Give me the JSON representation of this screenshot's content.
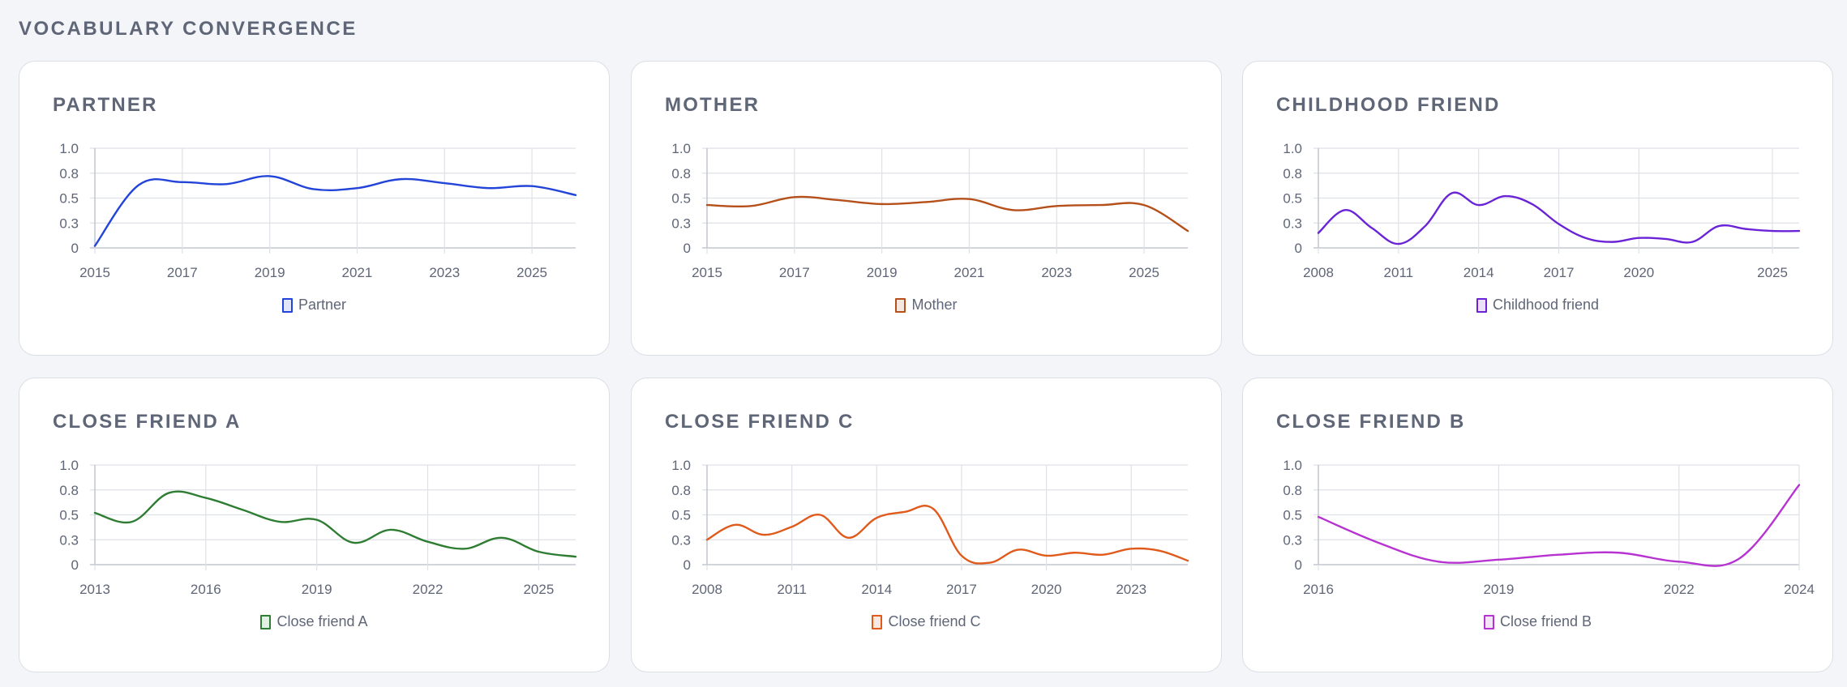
{
  "page": {
    "title": "VOCABULARY CONVERGENCE"
  },
  "chart_data": [
    {
      "type": "line",
      "title": "PARTNER",
      "series": [
        {
          "name": "Partner",
          "color": "#2244d8",
          "x": [
            2015,
            2016,
            2017,
            2018,
            2019,
            2020,
            2021,
            2022,
            2023,
            2024,
            2025,
            2026
          ],
          "values": [
            0.02,
            0.63,
            0.66,
            0.64,
            0.72,
            0.59,
            0.6,
            0.69,
            0.65,
            0.6,
            0.62,
            0.53
          ]
        }
      ],
      "xticks": [
        2015,
        2017,
        2019,
        2021,
        2023,
        2025
      ],
      "xlim": [
        2015,
        2026
      ],
      "yticks": [
        "0",
        "0.3",
        "0.5",
        "0.8",
        "1.0"
      ],
      "ytick_values": [
        0,
        0.25,
        0.5,
        0.75,
        1.0
      ],
      "ylim": [
        0,
        1
      ],
      "grid": true,
      "legend": "bottom"
    },
    {
      "type": "line",
      "title": "MOTHER",
      "series": [
        {
          "name": "Mother",
          "color": "#b5501b",
          "x": [
            2015,
            2016,
            2017,
            2018,
            2019,
            2020,
            2021,
            2022,
            2023,
            2024,
            2025,
            2026
          ],
          "values": [
            0.43,
            0.42,
            0.51,
            0.48,
            0.44,
            0.46,
            0.49,
            0.38,
            0.42,
            0.43,
            0.43,
            0.17
          ]
        }
      ],
      "xticks": [
        2015,
        2017,
        2019,
        2021,
        2023,
        2025
      ],
      "xlim": [
        2015,
        2026
      ],
      "yticks": [
        "0",
        "0.3",
        "0.5",
        "0.8",
        "1.0"
      ],
      "ytick_values": [
        0,
        0.25,
        0.5,
        0.75,
        1.0
      ],
      "ylim": [
        0,
        1
      ],
      "grid": true,
      "legend": "bottom"
    },
    {
      "type": "line",
      "title": "CHILDHOOD FRIEND",
      "series": [
        {
          "name": "Childhood friend",
          "color": "#6a23d6",
          "x": [
            2008,
            2009,
            2010,
            2011,
            2012,
            2013,
            2014,
            2015,
            2016,
            2017,
            2018,
            2019,
            2020,
            2021,
            2022,
            2023,
            2024,
            2025,
            2026
          ],
          "values": [
            0.15,
            0.38,
            0.2,
            0.04,
            0.22,
            0.55,
            0.43,
            0.52,
            0.44,
            0.24,
            0.1,
            0.06,
            0.1,
            0.09,
            0.06,
            0.22,
            0.19,
            0.17,
            0.17
          ]
        }
      ],
      "xticks": [
        2008,
        2011,
        2014,
        2017,
        2020,
        2025
      ],
      "xlim": [
        2008,
        2026
      ],
      "yticks": [
        "0",
        "0.3",
        "0.5",
        "0.8",
        "1.0"
      ],
      "ytick_values": [
        0,
        0.25,
        0.5,
        0.75,
        1.0
      ],
      "ylim": [
        0,
        1
      ],
      "grid": true,
      "legend": "bottom"
    },
    {
      "type": "line",
      "title": "CLOSE FRIEND A",
      "series": [
        {
          "name": "Close friend A",
          "color": "#2e7d32",
          "x": [
            2013,
            2014,
            2015,
            2016,
            2017,
            2018,
            2019,
            2020,
            2021,
            2022,
            2023,
            2024,
            2025,
            2026
          ],
          "values": [
            0.52,
            0.43,
            0.72,
            0.67,
            0.55,
            0.43,
            0.45,
            0.22,
            0.35,
            0.23,
            0.16,
            0.27,
            0.13,
            0.08
          ]
        }
      ],
      "xticks": [
        2013,
        2016,
        2019,
        2022,
        2025
      ],
      "xlim": [
        2013,
        2026
      ],
      "yticks": [
        "0",
        "0.3",
        "0.5",
        "0.8",
        "1.0"
      ],
      "ytick_values": [
        0,
        0.25,
        0.5,
        0.75,
        1.0
      ],
      "ylim": [
        0,
        1
      ],
      "grid": true,
      "legend": "bottom"
    },
    {
      "type": "line",
      "title": "CLOSE FRIEND C",
      "series": [
        {
          "name": "Close friend C",
          "color": "#e05a1c",
          "x": [
            2008,
            2009,
            2010,
            2011,
            2012,
            2013,
            2014,
            2015,
            2016,
            2017,
            2018,
            2019,
            2020,
            2021,
            2022,
            2023,
            2024,
            2025
          ],
          "values": [
            0.25,
            0.4,
            0.3,
            0.38,
            0.5,
            0.27,
            0.47,
            0.53,
            0.56,
            0.09,
            0.02,
            0.15,
            0.09,
            0.12,
            0.1,
            0.16,
            0.14,
            0.04
          ]
        }
      ],
      "xticks": [
        2008,
        2011,
        2014,
        2017,
        2020,
        2023
      ],
      "xlim": [
        2008,
        2025
      ],
      "yticks": [
        "0",
        "0.3",
        "0.5",
        "0.8",
        "1.0"
      ],
      "ytick_values": [
        0,
        0.25,
        0.5,
        0.75,
        1.0
      ],
      "ylim": [
        0,
        1
      ],
      "grid": true,
      "legend": "bottom"
    },
    {
      "type": "line",
      "title": "CLOSE FRIEND B",
      "series": [
        {
          "name": "Close friend B",
          "color": "#b733d1",
          "x": [
            2016,
            2017,
            2018,
            2019,
            2020,
            2021,
            2022,
            2023,
            2024
          ],
          "values": [
            0.48,
            0.22,
            0.03,
            0.05,
            0.1,
            0.12,
            0.03,
            0.06,
            0.8
          ]
        }
      ],
      "xticks": [
        2016,
        2019,
        2022,
        2024
      ],
      "xlim": [
        2016,
        2024
      ],
      "yticks": [
        "0",
        "0.3",
        "0.5",
        "0.8",
        "1.0"
      ],
      "ytick_values": [
        0,
        0.25,
        0.5,
        0.75,
        1.0
      ],
      "ylim": [
        0,
        1
      ],
      "grid": true,
      "legend": "bottom"
    }
  ]
}
